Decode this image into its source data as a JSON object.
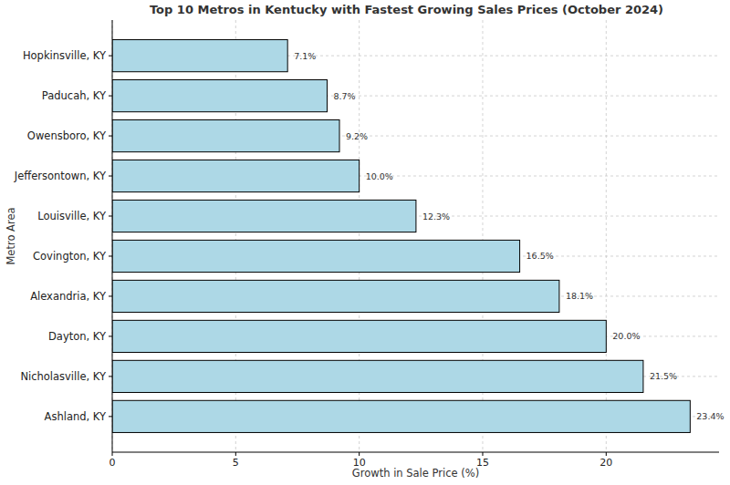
{
  "chart_data": {
    "type": "bar",
    "orientation": "horizontal",
    "title": "Top 10 Metros in Kentucky with Fastest Growing Sales Prices (October 2024)",
    "xlabel": "Growth in Sale Price (%)",
    "ylabel": "Metro Area",
    "categories": [
      "Ashland, KY",
      "Nicholasville, KY",
      "Dayton, KY",
      "Alexandria, KY",
      "Covington, KY",
      "Louisville, KY",
      "Jeffersontown, KY",
      "Owensboro, KY",
      "Paducah, KY",
      "Hopkinsville, KY"
    ],
    "values": [
      23.4,
      21.5,
      20.0,
      18.1,
      16.5,
      12.3,
      10.0,
      9.2,
      8.7,
      7.1
    ],
    "value_labels": [
      "23.4%",
      "21.5%",
      "20.0%",
      "18.1%",
      "16.5%",
      "12.3%",
      "10.0%",
      "9.2%",
      "8.7%",
      "7.1%"
    ],
    "color": "#add8e6",
    "xlim": [
      0,
      24.57
    ],
    "xticks": [
      0,
      5,
      10,
      15,
      20
    ],
    "grid": true,
    "data_labels": true
  }
}
